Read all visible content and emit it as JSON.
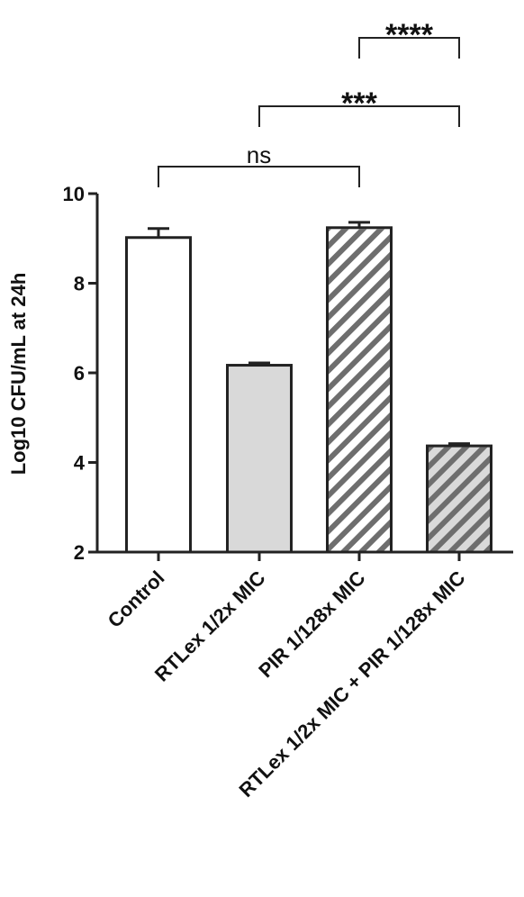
{
  "chart_data": {
    "type": "bar",
    "y_label": "Log10 CFU/mL at 24h",
    "categories": [
      "Control",
      "RTLex 1/2x MIC",
      "PIR 1/128x MIC",
      "RTLex 1/2x MIC + PIR 1/128x MIC"
    ],
    "values": [
      9.02,
      6.17,
      9.24,
      4.37
    ],
    "errors": [
      0.2,
      0.05,
      0.12,
      0.05
    ],
    "colors": [
      "#ffffff",
      "#d9d9d9",
      "#ffffff",
      "#d9d9d9"
    ],
    "hatched": [
      false,
      false,
      true,
      true
    ],
    "hatch_color": "#6e6e6e",
    "ylim": [
      2,
      10
    ],
    "yticks": [
      2,
      4,
      6,
      8,
      10
    ],
    "comparisons": [
      {
        "label": "ns",
        "from": 0,
        "to": 2
      },
      {
        "label": "***",
        "from": 1,
        "to": 3
      },
      {
        "label": "****",
        "from": 2,
        "to": 3
      }
    ]
  }
}
